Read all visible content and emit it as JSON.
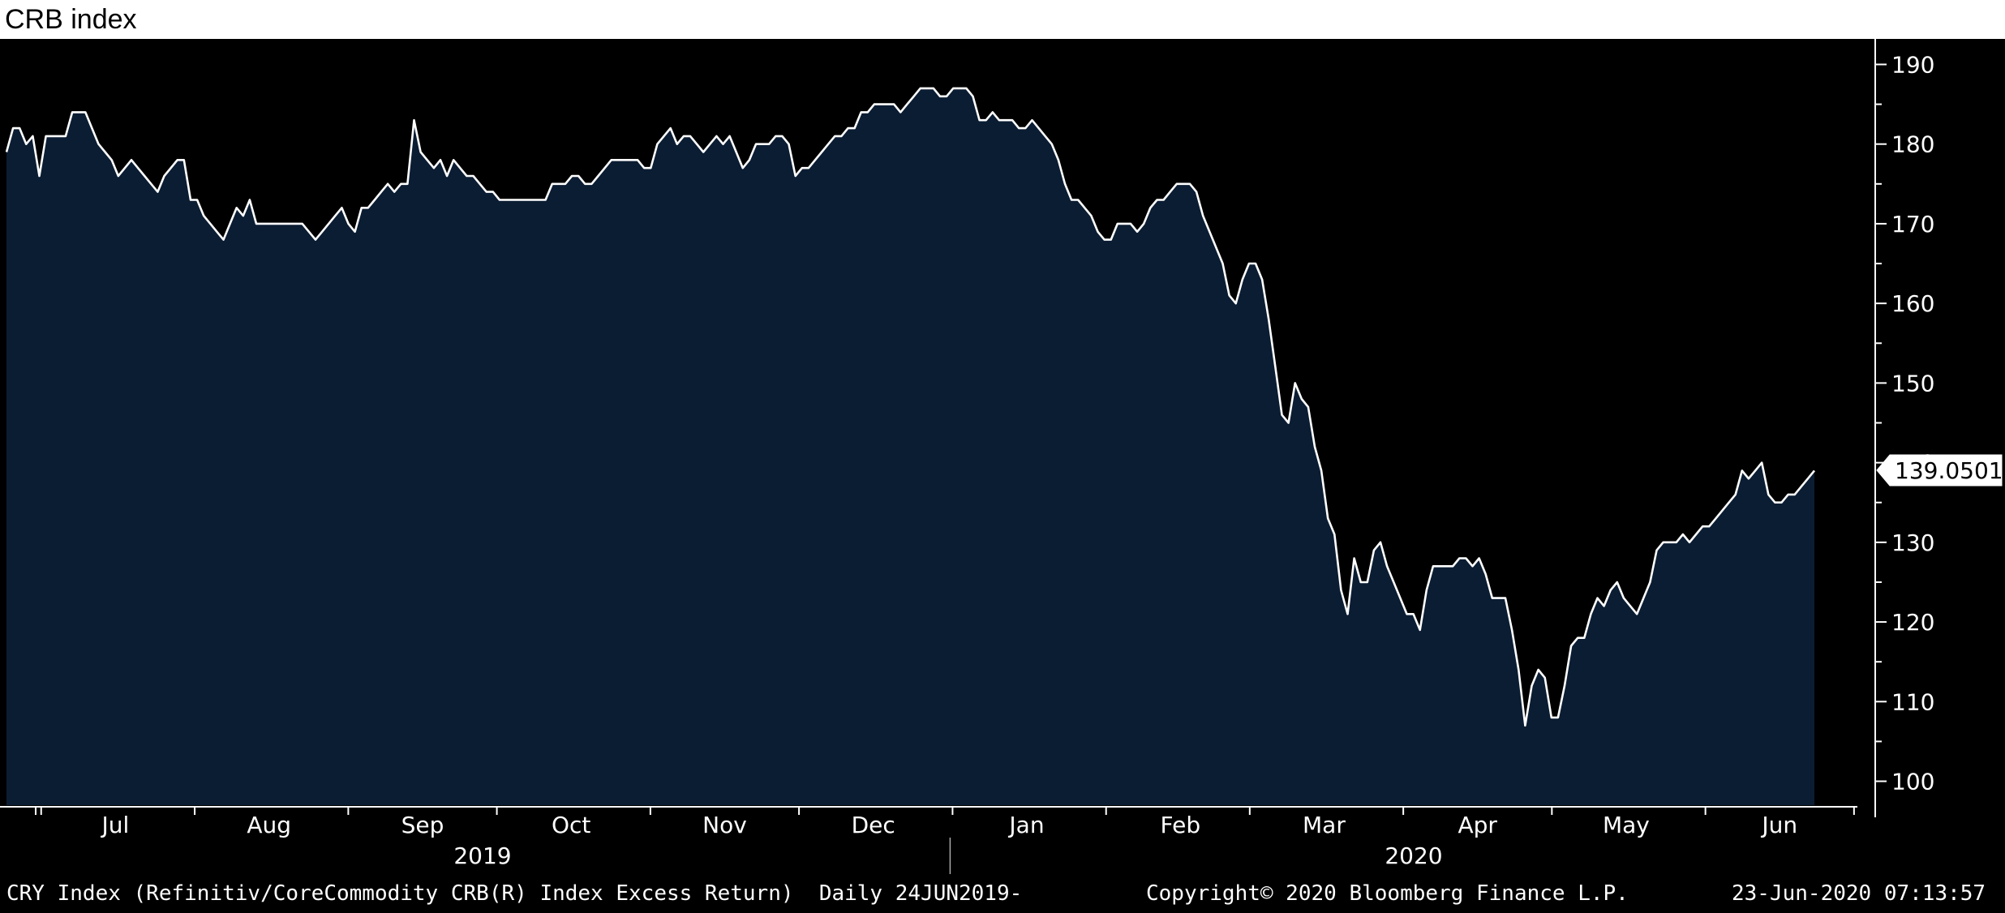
{
  "chart_data": {
    "type": "area",
    "title": "CRB index",
    "series": [
      {
        "values": [
          179,
          182,
          182,
          180,
          181,
          176,
          181,
          181,
          181,
          181,
          184,
          184,
          184,
          182,
          180,
          179,
          178,
          176,
          177,
          178,
          177,
          176,
          175,
          174,
          176,
          177,
          178,
          178,
          173,
          173,
          171,
          170,
          169,
          168,
          170,
          172,
          171,
          173,
          170,
          170,
          170,
          170,
          170,
          170,
          170,
          170,
          169,
          168,
          169,
          170,
          171,
          172,
          170,
          169,
          172,
          172,
          173,
          174,
          175,
          174,
          175,
          175,
          183,
          179,
          178,
          177,
          178,
          176,
          178,
          177,
          176,
          176,
          175,
          174,
          174,
          173,
          173,
          173,
          173,
          173,
          173,
          173,
          173,
          175,
          175,
          175,
          176,
          176,
          175,
          175,
          176,
          177,
          178,
          178,
          178,
          178,
          178,
          177,
          177,
          180,
          181,
          182,
          180,
          181,
          181,
          180,
          179,
          180,
          181,
          180,
          181,
          179,
          177,
          178,
          180,
          180,
          180,
          181,
          181,
          180,
          176,
          177,
          177,
          178,
          179,
          180,
          181,
          181,
          182,
          182,
          184,
          184,
          185,
          185,
          185,
          185,
          184,
          185,
          186,
          187,
          187,
          187,
          186,
          186,
          187,
          187,
          187,
          186,
          183,
          183,
          184,
          183,
          183,
          183,
          182,
          182,
          183,
          182,
          181,
          180,
          178,
          175,
          173,
          173,
          172,
          171,
          169,
          168,
          168,
          170,
          170,
          170,
          169,
          170,
          172,
          173,
          173,
          174,
          175,
          175,
          175,
          174,
          171,
          169,
          167,
          165,
          161,
          160,
          163,
          165,
          165,
          163,
          158,
          152,
          146,
          145,
          150,
          148,
          147,
          142,
          139,
          133,
          131,
          124,
          121,
          128,
          125,
          125,
          129,
          130,
          127,
          125,
          123,
          121,
          121,
          119,
          124,
          127,
          127,
          127,
          127,
          128,
          128,
          127,
          128,
          126,
          123,
          123,
          123,
          119,
          114,
          107,
          112,
          114,
          113,
          108,
          108,
          112,
          117,
          118,
          118,
          121,
          123,
          122,
          124,
          125,
          123,
          122,
          121,
          123,
          125,
          129,
          130,
          130,
          130,
          131,
          130,
          131,
          132,
          132,
          133,
          134,
          135,
          136,
          139,
          138,
          139,
          140,
          136,
          135,
          135,
          136,
          136,
          137,
          138,
          139
        ]
      }
    ],
    "x_start": "24JUN2019",
    "x_end": "23JUN2020",
    "ylim": [
      97,
      193
    ],
    "yticks": [
      100,
      110,
      120,
      130,
      140,
      150,
      160,
      170,
      180,
      190
    ],
    "months": [
      "Jul",
      "Aug",
      "Sep",
      "Oct",
      "Nov",
      "Dec",
      "Jan",
      "Feb",
      "Mar",
      "Apr",
      "May",
      "Jun"
    ],
    "years": [
      "2019",
      "2020"
    ],
    "last_value_label": "139.0501",
    "grid": false,
    "legend": "none",
    "colors": {
      "background": "#000000",
      "fill": "#0b1d33",
      "line": "#ffffff",
      "text": "#ffffff"
    }
  },
  "footer": {
    "source": "CRY Index (Refinitiv/CoreCommodity CRB(R) Index Excess Return)  Daily 24JUN2019-",
    "copyright": "Copyright© 2020 Bloomberg Finance L.P.",
    "timestamp": "23-Jun-2020 07:13:57"
  }
}
